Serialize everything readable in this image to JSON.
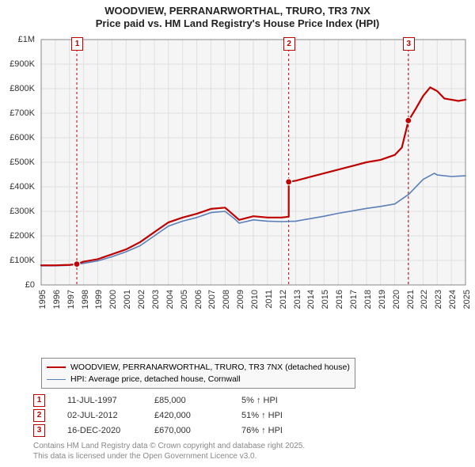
{
  "title_line1": "WOODVIEW, PERRANARWORTHAL, TRURO, TR3 7NX",
  "title_line2": "Price paid vs. HM Land Registry's House Price Index (HPI)",
  "chart": {
    "type": "line",
    "background_color": "#f5f5f5",
    "plot_border_color": "#888888",
    "grid_color": "#e0e0e0",
    "x": {
      "min": 1995,
      "max": 2025,
      "ticks": [
        1995,
        1996,
        1997,
        1998,
        1999,
        2000,
        2001,
        2002,
        2003,
        2004,
        2005,
        2006,
        2007,
        2008,
        2009,
        2010,
        2011,
        2012,
        2013,
        2014,
        2015,
        2016,
        2017,
        2018,
        2019,
        2020,
        2021,
        2022,
        2023,
        2024,
        2025
      ]
    },
    "y": {
      "min": 0,
      "max": 1000000,
      "tick_step": 100000,
      "tick_labels": [
        "£0",
        "£100K",
        "£200K",
        "£300K",
        "£400K",
        "£500K",
        "£600K",
        "£700K",
        "£800K",
        "£900K",
        "£1M"
      ]
    },
    "label_fontsize": 11,
    "series": [
      {
        "name": "WOODVIEW, PERRANARWORTHAL, TRURO, TR3 7NX (detached house)",
        "color": "#c00000",
        "width": 2.2,
        "data": [
          [
            1995,
            80000
          ],
          [
            1996,
            80000
          ],
          [
            1997,
            82000
          ],
          [
            1997.52,
            85000
          ],
          [
            1998,
            95000
          ],
          [
            1999,
            105000
          ],
          [
            2000,
            125000
          ],
          [
            2001,
            145000
          ],
          [
            2002,
            175000
          ],
          [
            2003,
            215000
          ],
          [
            2004,
            255000
          ],
          [
            2005,
            275000
          ],
          [
            2006,
            290000
          ],
          [
            2007,
            310000
          ],
          [
            2008,
            315000
          ],
          [
            2008.7,
            280000
          ],
          [
            2009,
            265000
          ],
          [
            2010,
            280000
          ],
          [
            2011,
            275000
          ],
          [
            2012,
            275000
          ],
          [
            2012.5,
            278000
          ],
          [
            2012.502,
            420000
          ],
          [
            2013,
            425000
          ],
          [
            2014,
            440000
          ],
          [
            2015,
            455000
          ],
          [
            2016,
            470000
          ],
          [
            2017,
            485000
          ],
          [
            2018,
            500000
          ],
          [
            2019,
            510000
          ],
          [
            2020,
            530000
          ],
          [
            2020.5,
            560000
          ],
          [
            2020.95,
            665000
          ],
          [
            2020.958,
            670000
          ],
          [
            2021,
            672000
          ],
          [
            2021.5,
            720000
          ],
          [
            2022,
            770000
          ],
          [
            2022.5,
            805000
          ],
          [
            2023,
            790000
          ],
          [
            2023.5,
            760000
          ],
          [
            2024,
            755000
          ],
          [
            2024.5,
            750000
          ],
          [
            2025,
            755000
          ]
        ]
      },
      {
        "name": "HPI: Average price, detached house, Cornwall",
        "color": "#5b7fb8",
        "width": 1.6,
        "data": [
          [
            1995,
            78000
          ],
          [
            1996,
            78000
          ],
          [
            1997,
            80000
          ],
          [
            1998,
            88000
          ],
          [
            1999,
            98000
          ],
          [
            2000,
            115000
          ],
          [
            2001,
            135000
          ],
          [
            2002,
            160000
          ],
          [
            2003,
            200000
          ],
          [
            2004,
            240000
          ],
          [
            2005,
            260000
          ],
          [
            2006,
            275000
          ],
          [
            2007,
            295000
          ],
          [
            2008,
            300000
          ],
          [
            2008.7,
            268000
          ],
          [
            2009,
            252000
          ],
          [
            2010,
            265000
          ],
          [
            2011,
            260000
          ],
          [
            2012,
            258000
          ],
          [
            2013,
            260000
          ],
          [
            2014,
            270000
          ],
          [
            2015,
            280000
          ],
          [
            2016,
            292000
          ],
          [
            2017,
            302000
          ],
          [
            2018,
            312000
          ],
          [
            2019,
            320000
          ],
          [
            2020,
            330000
          ],
          [
            2021,
            370000
          ],
          [
            2022,
            430000
          ],
          [
            2022.8,
            455000
          ],
          [
            2023,
            448000
          ],
          [
            2024,
            442000
          ],
          [
            2025,
            445000
          ]
        ]
      }
    ],
    "sale_markers": [
      {
        "n": "1",
        "x": 1997.52,
        "y": 85000,
        "color": "#c00000"
      },
      {
        "n": "2",
        "x": 2012.5,
        "y": 420000,
        "color": "#c00000"
      },
      {
        "n": "3",
        "x": 2020.958,
        "y": 670000,
        "color": "#c00000"
      }
    ]
  },
  "legend": {
    "items": [
      {
        "color": "#c00000",
        "width": 2.2,
        "label": "WOODVIEW, PERRANARWORTHAL, TRURO, TR3 7NX (detached house)"
      },
      {
        "color": "#5b7fb8",
        "width": 1.6,
        "label": "HPI: Average price, detached house, Cornwall"
      }
    ]
  },
  "sales": [
    {
      "n": "1",
      "date": "11-JUL-1997",
      "price": "£85,000",
      "pct": "5% ↑ HPI",
      "color": "#c00000"
    },
    {
      "n": "2",
      "date": "02-JUL-2012",
      "price": "£420,000",
      "pct": "51% ↑ HPI",
      "color": "#c00000"
    },
    {
      "n": "3",
      "date": "16-DEC-2020",
      "price": "£670,000",
      "pct": "76% ↑ HPI",
      "color": "#c00000"
    }
  ],
  "attribution_line1": "Contains HM Land Registry data © Crown copyright and database right 2025.",
  "attribution_line2": "This data is licensed under the Open Government Licence v3.0."
}
